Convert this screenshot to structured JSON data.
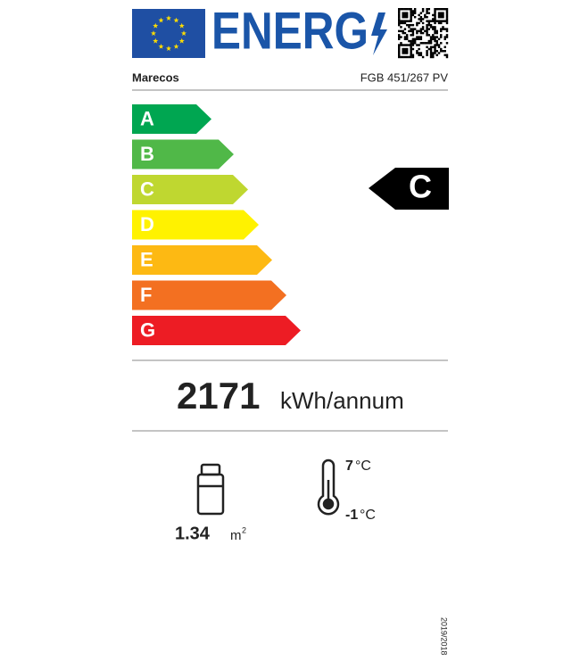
{
  "header": {
    "logo_text": "ENERG",
    "supplier": "Marecos",
    "model": "FGB 451/267 PV"
  },
  "scale": {
    "classes": [
      "A",
      "B",
      "C",
      "D",
      "E",
      "F",
      "G"
    ],
    "colors": [
      "#00a651",
      "#50b848",
      "#bfd730",
      "#fff200",
      "#fdb913",
      "#f37021",
      "#ed1c24"
    ]
  },
  "rating": "C",
  "energy": {
    "value": "2171",
    "unit": "kWh/annum"
  },
  "area": {
    "value": "1.34",
    "unit": "m",
    "unit_sup": "2"
  },
  "temperature": {
    "max": "7",
    "max_unit": "°C",
    "min": "-1",
    "min_unit": "°C"
  },
  "footer": {
    "regulation": "2019/2018"
  }
}
